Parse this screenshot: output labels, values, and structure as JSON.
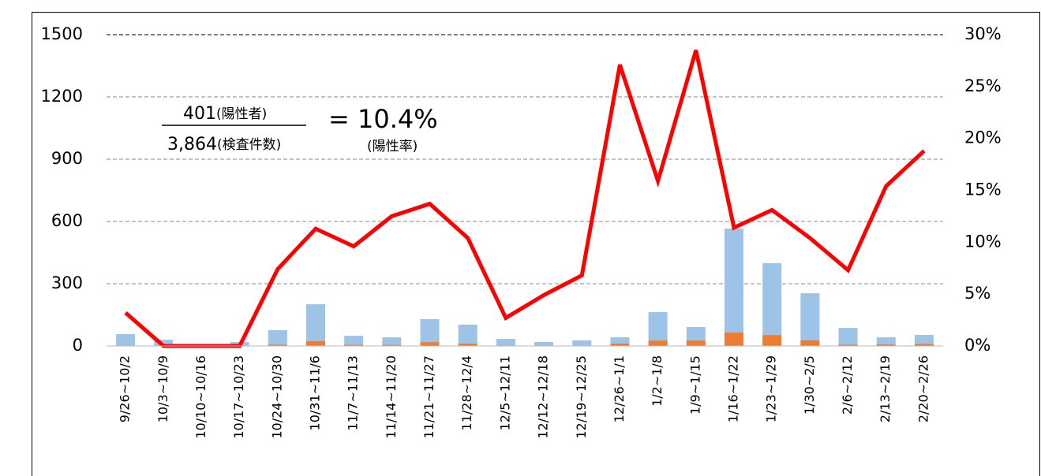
{
  "chart_data": {
    "type": "bar_line",
    "categories": [
      "9/26~10/2",
      "10/3~10/9",
      "10/10~10/16",
      "10/17~10/23",
      "10/24~10/30",
      "10/31~11/6",
      "11/7~11/13",
      "11/14~11/20",
      "11/21~11/27",
      "11/28~12/4",
      "12/5~12/11",
      "12/12~12/18",
      "12/19~12/25",
      "12/26~1/1",
      "1/2~1/8",
      "1/9~1/15",
      "1/16~1/22",
      "1/23~1/29",
      "1/30~2/5",
      "2/6~2/12",
      "2/13~2/19",
      "2/20~2/26"
    ],
    "series": [
      {
        "color": "#9dc3e6",
        "values": [
          57,
          30,
          3,
          19,
          76,
          201,
          49,
          42,
          129,
          103,
          34,
          19,
          27,
          42,
          163,
          91,
          566,
          399,
          254,
          87,
          42,
          53
        ]
      },
      {
        "color": "#ed7d31",
        "values": [
          2,
          0,
          0,
          0,
          6,
          23,
          5,
          5,
          18,
          11,
          1,
          1,
          2,
          11,
          26,
          26,
          65,
          52,
          27,
          6,
          7,
          10
        ]
      },
      {
        "color": "#ff0000",
        "axis": "y2",
        "values": [
          3.2,
          0,
          0,
          0,
          7.4,
          11.3,
          9.6,
          12.5,
          13.7,
          10.4,
          2.7,
          4.9,
          6.8,
          27.1,
          15.9,
          28.5,
          11.4,
          13.1,
          10.4,
          7.3,
          15.4,
          18.8
        ]
      }
    ],
    "ylim": [
      0,
      1500
    ],
    "yticks": [
      0,
      300,
      600,
      900,
      1200,
      1500
    ],
    "y2lim": [
      0,
      30
    ],
    "y2ticks": [
      {
        "value": 0,
        "label": "0%"
      },
      {
        "value": 5,
        "label": "5%"
      },
      {
        "value": 10,
        "label": "10%"
      },
      {
        "value": 15,
        "label": "15%"
      },
      {
        "value": 20,
        "label": "20%"
      },
      {
        "value": 25,
        "label": "25%"
      },
      {
        "value": 30,
        "label": "30%"
      }
    ],
    "grid": true,
    "annotation": {
      "positives": "401",
      "positives_label": "(陽性者)",
      "tests": "3,864",
      "tests_label": "(検査件数)",
      "rate": "= 10.4%",
      "rate_label": "(陽性率)"
    }
  }
}
